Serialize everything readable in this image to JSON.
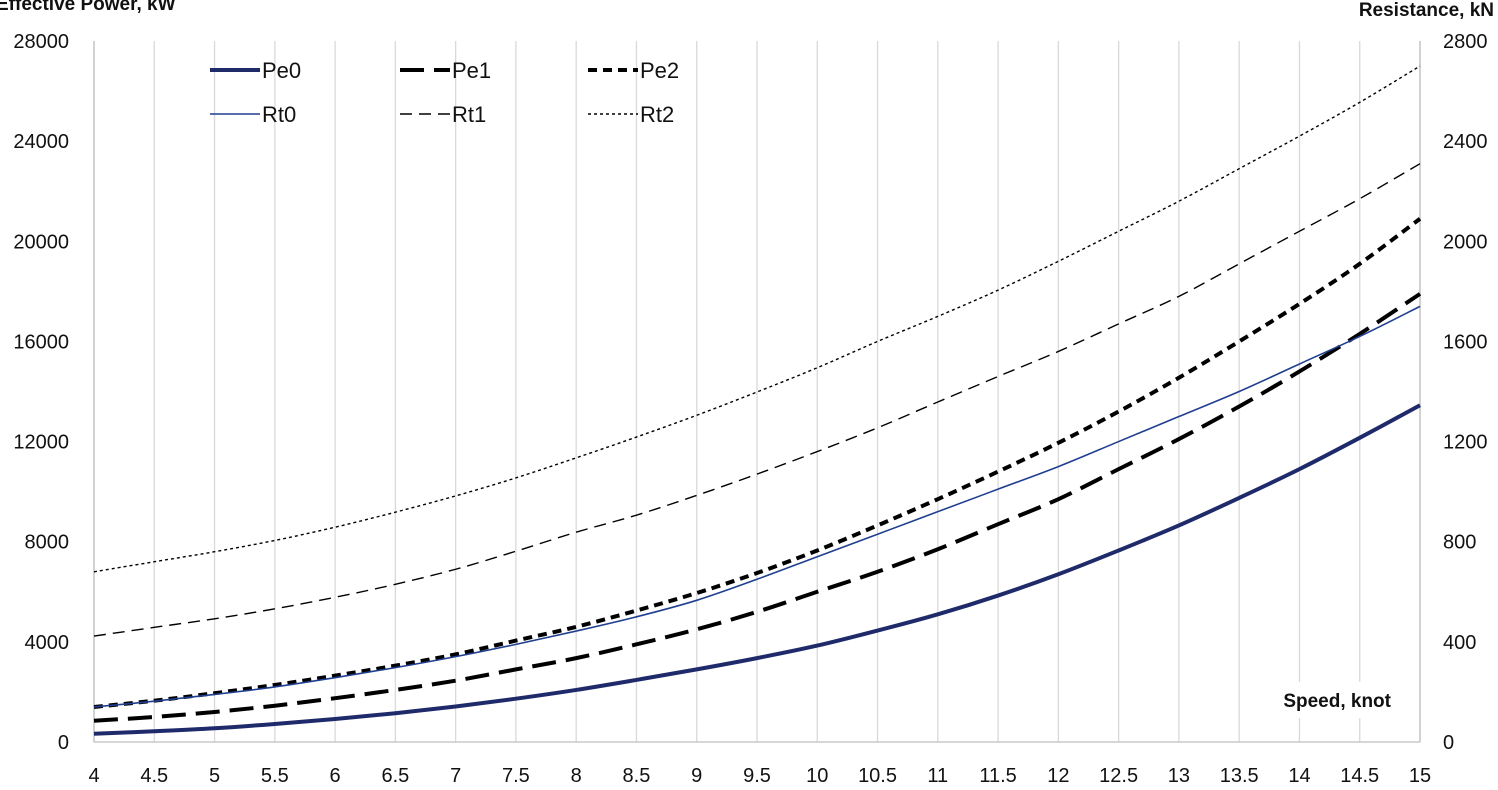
{
  "chart_data": {
    "type": "line",
    "title": "",
    "xlabel": "Speed, knot",
    "ylabel_left": "Effective Power, kW",
    "ylabel_right": "Resistance, kN",
    "x": [
      4,
      4.5,
      5,
      5.5,
      6,
      6.5,
      7,
      7.5,
      8,
      8.5,
      9,
      9.5,
      10,
      10.5,
      11,
      11.5,
      12,
      12.5,
      13,
      13.5,
      14,
      14.5,
      15
    ],
    "x_tick_labels": [
      "4",
      "4.5",
      "5",
      "5.5",
      "6",
      "6.5",
      "7",
      "7.5",
      "8",
      "8.5",
      "9",
      "9.5",
      "10",
      "10.5",
      "11",
      "11.5",
      "12",
      "12.5",
      "13",
      "13.5",
      "14",
      "14.5",
      "15"
    ],
    "xlim": [
      4,
      15
    ],
    "ylim_left": [
      0,
      28000
    ],
    "ylim_right": [
      0,
      2800
    ],
    "yticks_left": [
      "0",
      "4000",
      "8000",
      "12000",
      "16000",
      "20000",
      "24000",
      "28000"
    ],
    "yticks_right": [
      "0",
      "400",
      "800",
      "1200",
      "1600",
      "2000",
      "2400",
      "2800"
    ],
    "grid": "vertical",
    "legend_position": "top-left",
    "series": [
      {
        "name": "Pe0",
        "axis": "left",
        "color": "#1f2a6b",
        "style": "thick-solid",
        "values": [
          330,
          430,
          550,
          720,
          920,
          1150,
          1420,
          1730,
          2080,
          2480,
          2900,
          3350,
          3850,
          4450,
          5100,
          5850,
          6700,
          7650,
          8650,
          9750,
          10900,
          12150,
          13450
        ]
      },
      {
        "name": "Pe1",
        "axis": "left",
        "color": "#000000",
        "style": "thick-long-dash",
        "values": [
          850,
          1000,
          1200,
          1450,
          1750,
          2080,
          2450,
          2900,
          3350,
          3900,
          4500,
          5200,
          6000,
          6800,
          7700,
          8700,
          9700,
          10900,
          12100,
          13400,
          14800,
          16300,
          17900
        ]
      },
      {
        "name": "Pe2",
        "axis": "left",
        "color": "#000000",
        "style": "thick-short-dash",
        "values": [
          1400,
          1650,
          1950,
          2280,
          2650,
          3050,
          3500,
          4050,
          4600,
          5250,
          5950,
          6750,
          7650,
          8650,
          9700,
          10800,
          11950,
          13200,
          14550,
          16000,
          17500,
          19100,
          20900
        ]
      },
      {
        "name": "Rt0",
        "axis": "right",
        "color": "#1f3f8f",
        "style": "thin-solid",
        "values": [
          140,
          163,
          190,
          220,
          257,
          297,
          341,
          390,
          443,
          500,
          566,
          650,
          740,
          830,
          920,
          1010,
          1100,
          1200,
          1300,
          1400,
          1510,
          1620,
          1740
        ]
      },
      {
        "name": "Rt1",
        "axis": "right",
        "color": "#000000",
        "style": "thin-dash",
        "values": [
          423,
          458,
          492,
          532,
          578,
          630,
          690,
          762,
          838,
          906,
          985,
          1070,
          1160,
          1255,
          1358,
          1460,
          1560,
          1670,
          1780,
          1910,
          2040,
          2170,
          2310
        ]
      },
      {
        "name": "Rt2",
        "axis": "right",
        "color": "#000000",
        "style": "thin-dot",
        "values": [
          680,
          720,
          760,
          805,
          858,
          918,
          983,
          1055,
          1135,
          1218,
          1305,
          1398,
          1495,
          1600,
          1700,
          1805,
          1920,
          2040,
          2160,
          2290,
          2420,
          2555,
          2700
        ]
      }
    ]
  }
}
